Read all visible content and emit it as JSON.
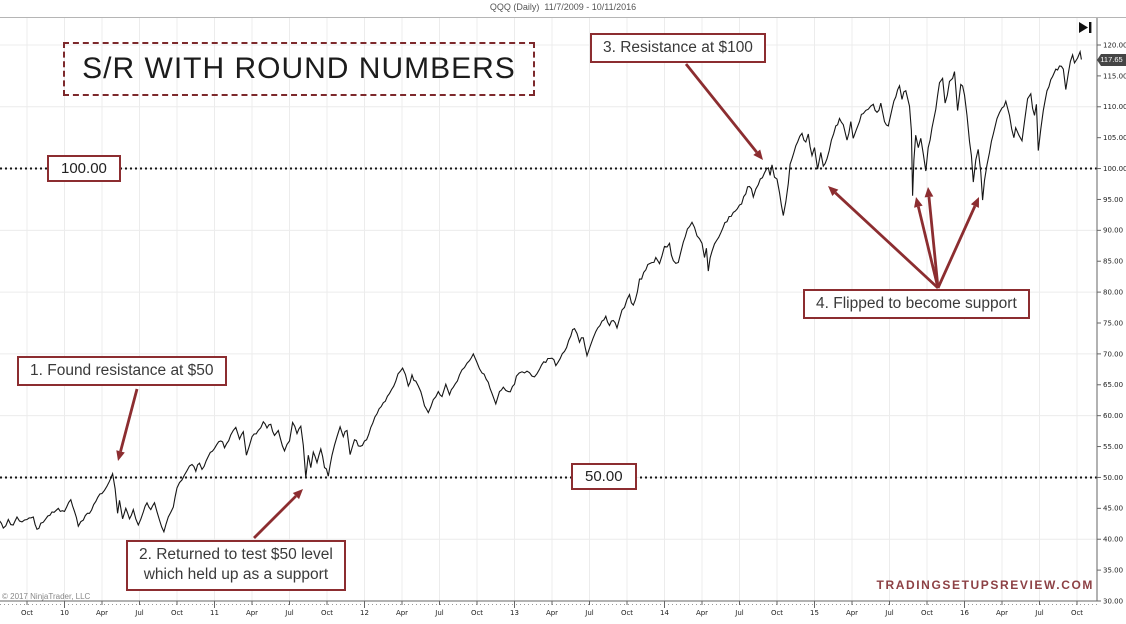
{
  "header": {
    "title": "QQQ (Daily)  11/7/2009 - 10/11/2016"
  },
  "branding": {
    "site": "TRADINGSETUPSREVIEW.COM",
    "copyright": "© 2017 NinjaTrader, LLC"
  },
  "colors": {
    "annotation": "#8c2d30",
    "price_line": "#161616",
    "level_line": "#141414",
    "grid": "#ececec",
    "axis": "#666666",
    "tag_bg": "#454545",
    "brand_text": "#8d4145"
  },
  "last_price": "117.65",
  "levels": [
    {
      "label": "100.00",
      "price": 100
    },
    {
      "label": "50.00",
      "price": 50
    }
  ],
  "annotations": {
    "headline": "S/R WITH ROUND NUMBERS",
    "boxes": [
      {
        "id": 1,
        "text": "1. Found resistance at $50"
      },
      {
        "id": 2,
        "text": "2. Returned to test $50 level\nwhich held up as a support"
      },
      {
        "id": 3,
        "text": "3. Resistance at $100"
      },
      {
        "id": 4,
        "text": "4. Flipped to become support"
      }
    ],
    "arrows": [
      {
        "from": [
          137,
          389
        ],
        "to": [
          118,
          461
        ]
      },
      {
        "from": [
          254,
          538
        ],
        "to": [
          303,
          489
        ]
      },
      {
        "from": [
          686,
          64
        ],
        "to": [
          763,
          160
        ]
      },
      {
        "from": [
          938,
          288
        ],
        "to": [
          828,
          186
        ]
      },
      {
        "from": [
          938,
          288
        ],
        "to": [
          916,
          197
        ]
      },
      {
        "from": [
          938,
          288
        ],
        "to": [
          928,
          187
        ]
      },
      {
        "from": [
          938,
          288
        ],
        "to": [
          979,
          197
        ]
      }
    ]
  },
  "chart_data": {
    "type": "line",
    "symbol": "QQQ",
    "interval": "Daily",
    "date_range": "11/7/2009 - 10/11/2016",
    "title": "QQQ (Daily)  11/7/2009 - 10/11/2016",
    "ylim": [
      30,
      120
    ],
    "y_tick_step": 5,
    "x_tick_interval_months": 3,
    "x_tick_labels": [
      "Oct",
      "10",
      "Apr",
      "Jul",
      "Oct",
      "11",
      "Apr",
      "Jul",
      "Oct",
      "12",
      "Apr",
      "Jul",
      "Oct",
      "13",
      "Apr",
      "Jul",
      "Oct",
      "14",
      "Apr",
      "Jul",
      "Oct",
      "15",
      "Apr",
      "Jul",
      "Oct",
      "16",
      "Apr",
      "Jul",
      "Oct"
    ],
    "support_resistance_levels": [
      100,
      50
    ],
    "last_price": 117.65,
    "series": [
      {
        "name": "QQQ close",
        "x_unit": "months since Oct 2009",
        "points": [
          [
            -2.2,
            43.0
          ],
          [
            -1.9,
            41.8
          ],
          [
            -1.5,
            43.2
          ],
          [
            -1.1,
            42.3
          ],
          [
            -0.8,
            43.6
          ],
          [
            -0.4,
            42.8
          ],
          [
            0,
            43.2
          ],
          [
            0.5,
            43.6
          ],
          [
            0.8,
            41.6
          ],
          [
            1.1,
            42.6
          ],
          [
            1.5,
            43.3
          ],
          [
            2,
            44.4
          ],
          [
            2.5,
            45.0
          ],
          [
            3,
            44.5
          ],
          [
            3.5,
            46.4
          ],
          [
            3.8,
            44.5
          ],
          [
            4.1,
            42.1
          ],
          [
            4.5,
            43.1
          ],
          [
            5,
            44.2
          ],
          [
            5.5,
            46.1
          ],
          [
            6,
            47.4
          ],
          [
            6.4,
            48.6
          ],
          [
            6.6,
            49.4
          ],
          [
            6.85,
            50.6
          ],
          [
            7.05,
            48.2
          ],
          [
            7.25,
            44.2
          ],
          [
            7.4,
            46.3
          ],
          [
            7.65,
            43.3
          ],
          [
            7.9,
            45.0
          ],
          [
            8.2,
            43.3
          ],
          [
            8.5,
            44.8
          ],
          [
            8.9,
            42.3
          ],
          [
            9.3,
            44.4
          ],
          [
            9.6,
            45.9
          ],
          [
            9.9,
            44.8
          ],
          [
            10.2,
            45.9
          ],
          [
            10.6,
            43.1
          ],
          [
            10.95,
            41.2
          ],
          [
            11.3,
            43.6
          ],
          [
            11.7,
            45.2
          ],
          [
            12,
            48.3
          ],
          [
            12.4,
            49.6
          ],
          [
            12.8,
            51.1
          ],
          [
            13.2,
            52.1
          ],
          [
            13.5,
            51.0
          ],
          [
            13.8,
            52.3
          ],
          [
            14,
            51.3
          ],
          [
            14.5,
            53.4
          ],
          [
            15,
            54.7
          ],
          [
            15.5,
            55.9
          ],
          [
            15.8,
            54.8
          ],
          [
            16.3,
            56.9
          ],
          [
            16.7,
            58.1
          ],
          [
            17,
            56.2
          ],
          [
            17.3,
            57.4
          ],
          [
            17.55,
            53.6
          ],
          [
            18,
            56.6
          ],
          [
            18.5,
            57.6
          ],
          [
            18.9,
            59.0
          ],
          [
            19.2,
            58.0
          ],
          [
            19.5,
            58.6
          ],
          [
            19.8,
            56.8
          ],
          [
            20.1,
            57.6
          ],
          [
            20.6,
            54.3
          ],
          [
            21,
            55.9
          ],
          [
            21.25,
            58.9
          ],
          [
            21.6,
            57.1
          ],
          [
            21.9,
            58.3
          ],
          [
            22.1,
            55.2
          ],
          [
            22.3,
            50.0
          ],
          [
            22.5,
            53.6
          ],
          [
            22.7,
            51.6
          ],
          [
            22.9,
            54.1
          ],
          [
            23.2,
            52.4
          ],
          [
            23.5,
            54.6
          ],
          [
            23.8,
            51.6
          ],
          [
            24.1,
            50.2
          ],
          [
            24.4,
            53.6
          ],
          [
            24.8,
            56.6
          ],
          [
            25.05,
            58.2
          ],
          [
            25.3,
            56.6
          ],
          [
            25.6,
            57.6
          ],
          [
            25.85,
            53.7
          ],
          [
            26.2,
            56.1
          ],
          [
            26.5,
            55.1
          ],
          [
            27,
            55.9
          ],
          [
            27.5,
            58.1
          ],
          [
            28,
            60.3
          ],
          [
            28.5,
            62.1
          ],
          [
            29,
            63.6
          ],
          [
            29.5,
            65.6
          ],
          [
            30.05,
            67.7
          ],
          [
            30.5,
            64.8
          ],
          [
            30.8,
            66.6
          ],
          [
            31.1,
            65.6
          ],
          [
            31.5,
            63.9
          ],
          [
            31.8,
            61.6
          ],
          [
            32.1,
            60.5
          ],
          [
            32.5,
            62.6
          ],
          [
            32.9,
            63.9
          ],
          [
            33.2,
            63.1
          ],
          [
            33.5,
            65.1
          ],
          [
            33.8,
            63.4
          ],
          [
            34.1,
            64.6
          ],
          [
            34.6,
            66.6
          ],
          [
            35,
            67.8
          ],
          [
            35.4,
            68.9
          ],
          [
            35.7,
            70.0
          ],
          [
            36,
            68.6
          ],
          [
            36.4,
            66.9
          ],
          [
            36.9,
            65.4
          ],
          [
            37.2,
            63.6
          ],
          [
            37.5,
            61.9
          ],
          [
            37.8,
            63.9
          ],
          [
            38.1,
            64.6
          ],
          [
            38.5,
            63.9
          ],
          [
            39,
            65.1
          ],
          [
            39.15,
            66.4
          ],
          [
            39.6,
            67.1
          ],
          [
            40,
            67.2
          ],
          [
            40.4,
            66.4
          ],
          [
            41,
            67.5
          ],
          [
            41.5,
            68.6
          ],
          [
            42,
            69.3
          ],
          [
            42.3,
            68.1
          ],
          [
            43,
            70.4
          ],
          [
            43.5,
            72.9
          ],
          [
            43.8,
            74.1
          ],
          [
            44.2,
            71.9
          ],
          [
            44.5,
            72.6
          ],
          [
            44.8,
            69.7
          ],
          [
            45.05,
            71.2
          ],
          [
            45.5,
            73.6
          ],
          [
            46,
            75.3
          ],
          [
            46.3,
            76.1
          ],
          [
            46.6,
            74.6
          ],
          [
            46.9,
            75.4
          ],
          [
            47.2,
            74.2
          ],
          [
            47.6,
            77.1
          ],
          [
            48,
            78.8
          ],
          [
            48.2,
            79.6
          ],
          [
            48.5,
            77.9
          ],
          [
            49,
            82.1
          ],
          [
            49.5,
            83.6
          ],
          [
            50,
            84.8
          ],
          [
            50.3,
            85.6
          ],
          [
            50.6,
            84.6
          ],
          [
            51,
            87.4
          ],
          [
            51.4,
            87.9
          ],
          [
            51.7,
            85.1
          ],
          [
            52.1,
            84.8
          ],
          [
            52.5,
            88.1
          ],
          [
            53,
            90.6
          ],
          [
            53.2,
            91.3
          ],
          [
            53.6,
            89.1
          ],
          [
            54,
            87.9
          ],
          [
            54.2,
            85.6
          ],
          [
            54.35,
            87.1
          ],
          [
            54.5,
            83.4
          ],
          [
            54.8,
            86.6
          ],
          [
            55,
            87.8
          ],
          [
            55.5,
            89.6
          ],
          [
            56,
            91.4
          ],
          [
            56.5,
            92.9
          ],
          [
            57,
            94.1
          ],
          [
            57.5,
            95.9
          ],
          [
            57.8,
            97.1
          ],
          [
            58.1,
            95.4
          ],
          [
            58.5,
            97.4
          ],
          [
            59,
            99.3
          ],
          [
            59.3,
            100.1
          ],
          [
            59.45,
            98.9
          ],
          [
            59.6,
            100.6
          ],
          [
            59.8,
            98.6
          ],
          [
            60,
            98.3
          ],
          [
            60.2,
            96.1
          ],
          [
            60.5,
            92.4
          ],
          [
            60.7,
            94.6
          ],
          [
            60.9,
            97.6
          ],
          [
            61.05,
            100.7
          ],
          [
            61.35,
            102.6
          ],
          [
            61.65,
            104.3
          ],
          [
            62,
            105.7
          ],
          [
            62.3,
            104.3
          ],
          [
            62.5,
            105.6
          ],
          [
            62.8,
            102.1
          ],
          [
            63,
            103.4
          ],
          [
            63.25,
            99.9
          ],
          [
            63.5,
            102.6
          ],
          [
            63.7,
            100.4
          ],
          [
            64,
            101.6
          ],
          [
            64.35,
            104.6
          ],
          [
            64.7,
            106.9
          ],
          [
            65,
            108.1
          ],
          [
            65.3,
            107.1
          ],
          [
            65.6,
            104.6
          ],
          [
            65.9,
            107.6
          ],
          [
            66.1,
            104.9
          ],
          [
            66.35,
            106.3
          ],
          [
            66.6,
            107.6
          ],
          [
            66.9,
            108.9
          ],
          [
            67.3,
            109.6
          ],
          [
            67.7,
            110.4
          ],
          [
            68,
            109.1
          ],
          [
            68.3,
            110.6
          ],
          [
            68.6,
            107.6
          ],
          [
            68.9,
            106.9
          ],
          [
            69.2,
            109.6
          ],
          [
            69.5,
            111.6
          ],
          [
            69.8,
            113.4
          ],
          [
            70,
            111.2
          ],
          [
            70.3,
            112.6
          ],
          [
            70.6,
            110.1
          ],
          [
            70.75,
            106.1
          ],
          [
            70.85,
            95.6
          ],
          [
            70.95,
            101.4
          ],
          [
            71.1,
            105.4
          ],
          [
            71.3,
            103.4
          ],
          [
            71.5,
            104.9
          ],
          [
            71.9,
            99.6
          ],
          [
            72.1,
            103.4
          ],
          [
            72.4,
            106.6
          ],
          [
            72.7,
            109.6
          ],
          [
            73,
            113.9
          ],
          [
            73.25,
            114.6
          ],
          [
            73.45,
            110.6
          ],
          [
            73.8,
            114.1
          ],
          [
            74.05,
            114.6
          ],
          [
            74.2,
            115.7
          ],
          [
            74.45,
            109.4
          ],
          [
            74.7,
            113.6
          ],
          [
            75,
            111.9
          ],
          [
            75.2,
            108.6
          ],
          [
            75.4,
            104.4
          ],
          [
            75.55,
            102.1
          ],
          [
            75.7,
            97.8
          ],
          [
            75.9,
            101.4
          ],
          [
            76.1,
            103.1
          ],
          [
            76.3,
            99.4
          ],
          [
            76.45,
            94.9
          ],
          [
            76.6,
            98.1
          ],
          [
            76.8,
            100.6
          ],
          [
            77,
            102.6
          ],
          [
            77.3,
            105.6
          ],
          [
            77.6,
            108.1
          ],
          [
            78,
            109.8
          ],
          [
            78.3,
            110.9
          ],
          [
            78.6,
            108.6
          ],
          [
            78.95,
            105.0
          ],
          [
            79.1,
            106.6
          ],
          [
            79.35,
            105.4
          ],
          [
            79.6,
            104.5
          ],
          [
            79.8,
            107.6
          ],
          [
            80.05,
            111.3
          ],
          [
            80.3,
            112.1
          ],
          [
            80.6,
            108.6
          ],
          [
            80.75,
            110.4
          ],
          [
            80.9,
            102.9
          ],
          [
            81.1,
            106.4
          ],
          [
            81.3,
            109.4
          ],
          [
            81.6,
            112.6
          ],
          [
            81.9,
            114.4
          ],
          [
            82.05,
            114.9
          ],
          [
            82.3,
            116.1
          ],
          [
            82.6,
            116.6
          ],
          [
            82.9,
            116.1
          ],
          [
            83.1,
            112.8
          ],
          [
            83.3,
            115.4
          ],
          [
            83.65,
            118.4
          ],
          [
            83.8,
            117.1
          ],
          [
            84.05,
            117.9
          ],
          [
            84.25,
            118.9
          ],
          [
            84.35,
            117.65
          ]
        ]
      }
    ]
  }
}
